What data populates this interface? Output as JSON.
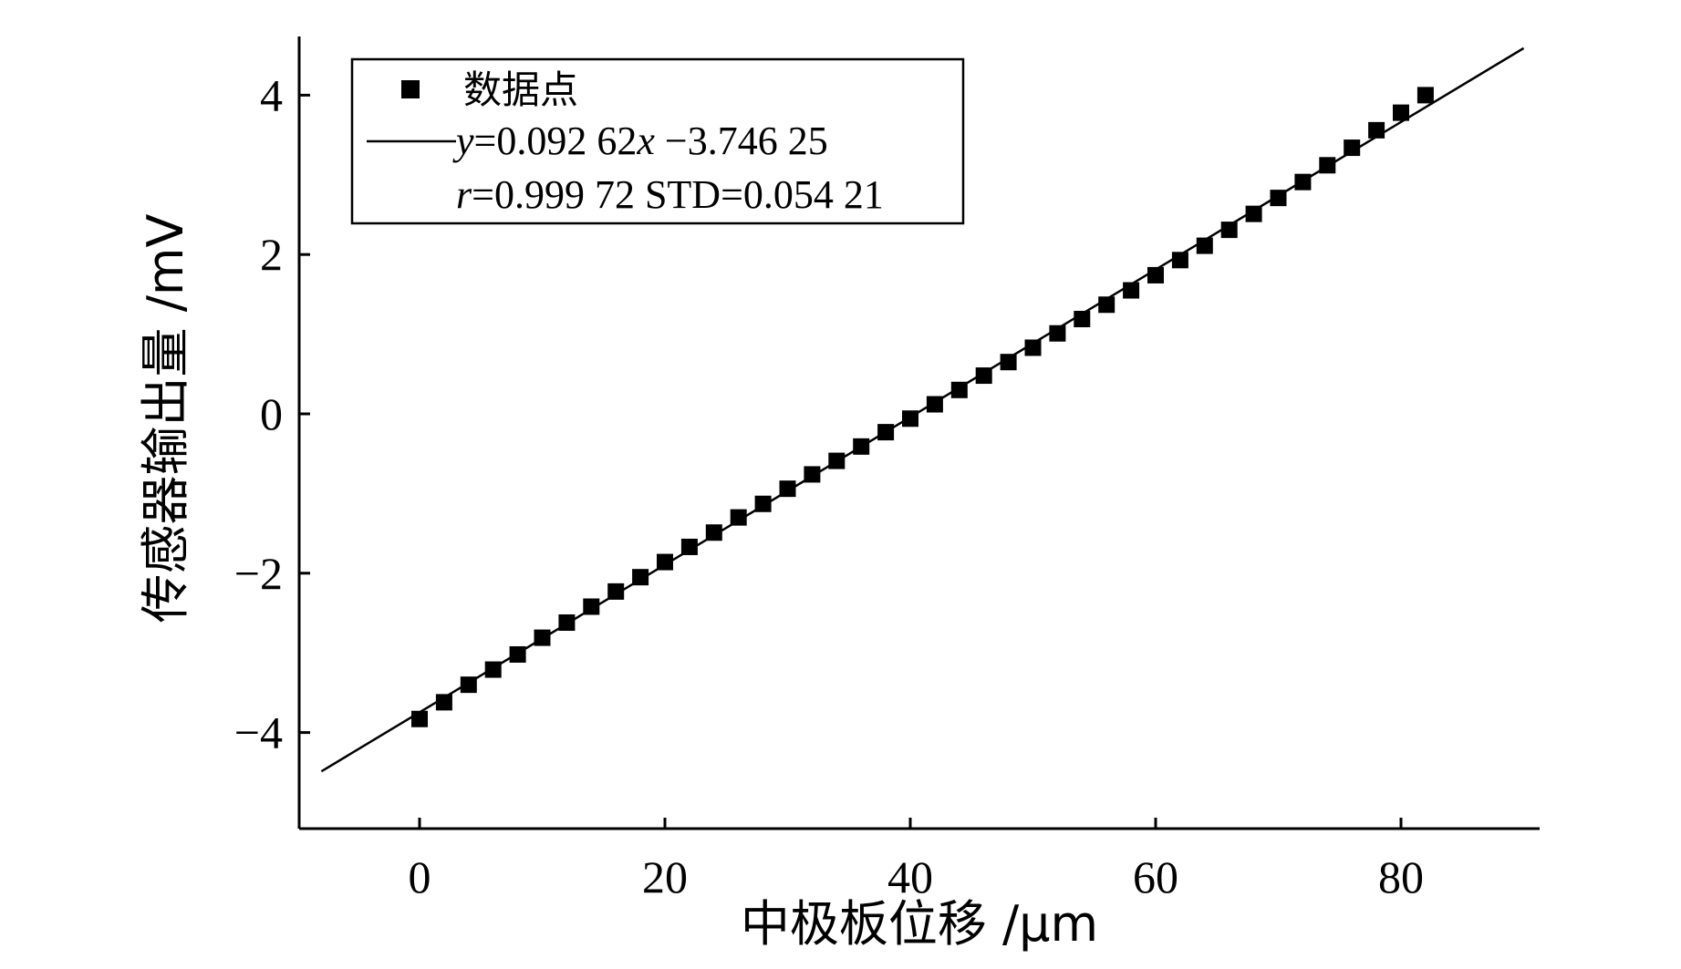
{
  "chart_data": {
    "type": "scatter",
    "title": "",
    "xlabel": "中极板位移 /μm",
    "ylabel": "传感器输出量 /mV",
    "xlim": [
      -10,
      90
    ],
    "ylim": [
      -5,
      4.7
    ],
    "xticks": [
      0,
      20,
      40,
      60,
      80
    ],
    "yticks": [
      -4,
      -2,
      0,
      2,
      4
    ],
    "xtick_labels": [
      "0",
      "20",
      "40",
      "60",
      "80"
    ],
    "ytick_labels": [
      "−4",
      "−2",
      "0",
      "2",
      "4"
    ],
    "grid": false,
    "legend_position": "top-left",
    "series": [
      {
        "name": "数据点",
        "kind": "markers",
        "marker": "square",
        "color": "#000000",
        "x": [
          0,
          2,
          4,
          6,
          8,
          10,
          12,
          14,
          16,
          18,
          20,
          22,
          24,
          26,
          28,
          30,
          32,
          34,
          36,
          38,
          40,
          42,
          44,
          46,
          48,
          50,
          52,
          54,
          56,
          58,
          60,
          62,
          64,
          66,
          68,
          70,
          72,
          74,
          76,
          78,
          80,
          82
        ],
        "y": [
          -3.83,
          -3.62,
          -3.4,
          -3.21,
          -3.02,
          -2.81,
          -2.62,
          -2.42,
          -2.23,
          -2.05,
          -1.86,
          -1.67,
          -1.49,
          -1.3,
          -1.13,
          -0.94,
          -0.76,
          -0.59,
          -0.41,
          -0.23,
          -0.06,
          0.12,
          0.3,
          0.48,
          0.65,
          0.83,
          1.01,
          1.19,
          1.37,
          1.55,
          1.74,
          1.93,
          2.11,
          2.31,
          2.51,
          2.71,
          2.91,
          3.12,
          3.34,
          3.56,
          3.78,
          4.0
        ]
      },
      {
        "name": "y=0.092 62x −3.746 25",
        "kind": "fit-line",
        "color": "#000000",
        "slope": 0.09262,
        "intercept": -3.74625,
        "x_range": [
          -8,
          90
        ]
      }
    ],
    "legend": {
      "marker_label": "数据点",
      "line_label_italic_y": "y",
      "line_label_part1": "=0.092 62",
      "line_label_italic_x": "x",
      "line_label_part2": " −3.746 25",
      "stats_italic_r": "r",
      "stats_label": "=0.999 72 STD=0.054 21"
    }
  }
}
